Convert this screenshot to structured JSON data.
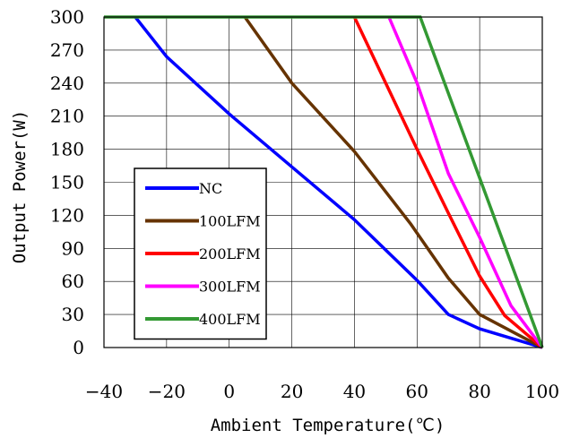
{
  "chart_data": {
    "type": "line",
    "title": "",
    "xlabel": "Ambient Temperature(℃)",
    "ylabel": "Output Power(W)",
    "xlim": [
      -40,
      100
    ],
    "ylim": [
      0,
      300
    ],
    "xticks": [
      -40,
      -20,
      0,
      20,
      40,
      60,
      80,
      100
    ],
    "yticks": [
      0,
      30,
      60,
      90,
      120,
      150,
      180,
      210,
      240,
      270,
      300
    ],
    "grid": true,
    "legend_position": "lower-left",
    "series": [
      {
        "name": "NC",
        "color": "#0000ff",
        "points": [
          [
            -30,
            300
          ],
          [
            -20,
            264
          ],
          [
            0,
            212
          ],
          [
            20,
            164
          ],
          [
            40,
            116
          ],
          [
            60,
            61
          ],
          [
            70,
            30
          ],
          [
            80,
            17
          ],
          [
            100,
            0
          ]
        ]
      },
      {
        "name": "100LFM",
        "color": "#663300",
        "points": [
          [
            5,
            300
          ],
          [
            20,
            240
          ],
          [
            40,
            178
          ],
          [
            58,
            112
          ],
          [
            70,
            63
          ],
          [
            80,
            30
          ],
          [
            100,
            0
          ]
        ]
      },
      {
        "name": "200LFM",
        "color": "#ff0000",
        "points": [
          [
            40,
            300
          ],
          [
            60,
            180
          ],
          [
            70,
            122
          ],
          [
            80,
            65
          ],
          [
            88,
            29
          ],
          [
            100,
            0
          ]
        ]
      },
      {
        "name": "300LFM",
        "color": "#ff00ff",
        "points": [
          [
            51,
            300
          ],
          [
            60,
            240
          ],
          [
            70,
            158
          ],
          [
            80,
            100
          ],
          [
            90,
            38
          ],
          [
            100,
            0
          ]
        ]
      },
      {
        "name": "400LFM",
        "color": "#339933",
        "points": [
          [
            -40,
            300
          ],
          [
            61,
            300
          ],
          [
            100,
            0
          ]
        ]
      }
    ]
  }
}
